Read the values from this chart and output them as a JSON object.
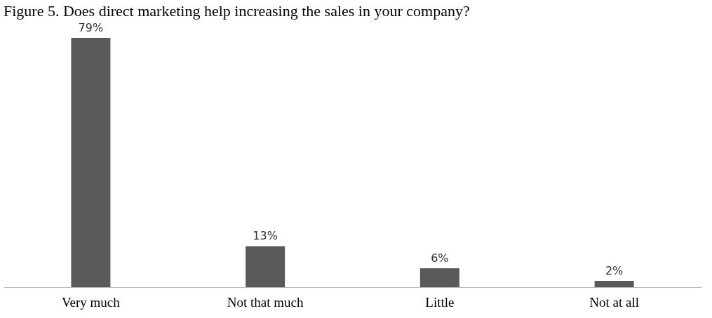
{
  "chart_data": {
    "type": "bar",
    "title": "Figure 5. Does direct marketing help increasing the sales in your company?",
    "categories": [
      "Very much",
      "Not that much",
      "Little",
      "Not at all"
    ],
    "values": [
      79,
      13,
      6,
      2
    ],
    "value_labels": [
      "79%",
      "13%",
      "6%",
      "2%"
    ],
    "color": "#595959",
    "grid": false
  }
}
